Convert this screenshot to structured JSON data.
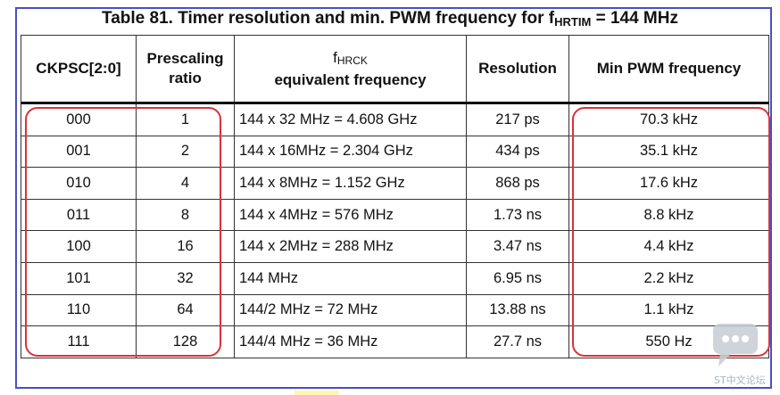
{
  "caption": {
    "prefix": "Table 81. Timer resolution and min. PWM frequency for f",
    "sub": "HRTIM",
    "suffix": " = 144 MHz"
  },
  "headers": {
    "ckpsc": "CKPSC[2:0]",
    "prescaling_line1": "Prescaling",
    "prescaling_line2": "ratio",
    "fhrck_symbol": "f",
    "fhrck_sub": "HRCK",
    "fhrck_line2": "equivalent frequency",
    "resolution": "Resolution",
    "min_pwm": "Min PWM frequency"
  },
  "rows": [
    {
      "ckpsc": "000",
      "ratio": "1",
      "freq": "144 x 32 MHz = 4.608 GHz",
      "resolution": "217 ps",
      "min_pwm": "70.3 kHz"
    },
    {
      "ckpsc": "001",
      "ratio": "2",
      "freq": "144 x 16MHz = 2.304 GHz",
      "resolution": "434 ps",
      "min_pwm": "35.1 kHz"
    },
    {
      "ckpsc": "010",
      "ratio": "4",
      "freq": "144 x 8MHz = 1.152 GHz",
      "resolution": "868 ps",
      "min_pwm": "17.6 kHz"
    },
    {
      "ckpsc": "011",
      "ratio": "8",
      "freq": "144 x 4MHz = 576 MHz",
      "resolution": "1.73 ns",
      "min_pwm": "8.8 kHz"
    },
    {
      "ckpsc": "100",
      "ratio": "16",
      "freq": "144 x 2MHz = 288 MHz",
      "resolution": "3.47 ns",
      "min_pwm": "4.4 kHz"
    },
    {
      "ckpsc": "101",
      "ratio": "32",
      "freq": "144 MHz",
      "resolution": "6.95 ns",
      "min_pwm": "2.2 kHz"
    },
    {
      "ckpsc": "110",
      "ratio": "64",
      "freq": "144/2 MHz = 72 MHz",
      "resolution": "13.88 ns",
      "min_pwm": "1.1 kHz"
    },
    {
      "ckpsc": "111",
      "ratio": "128",
      "freq": "144/4 MHz = 36 MHz",
      "resolution": "27.7 ns",
      "min_pwm": "550 Hz"
    }
  ],
  "colors": {
    "frame": "#4a4fc4",
    "highlight": "#d8333a",
    "watermark": "#a9b3bd"
  },
  "watermark": {
    "icon": "chat-bubble-icon",
    "text": "ST中文论坛"
  }
}
